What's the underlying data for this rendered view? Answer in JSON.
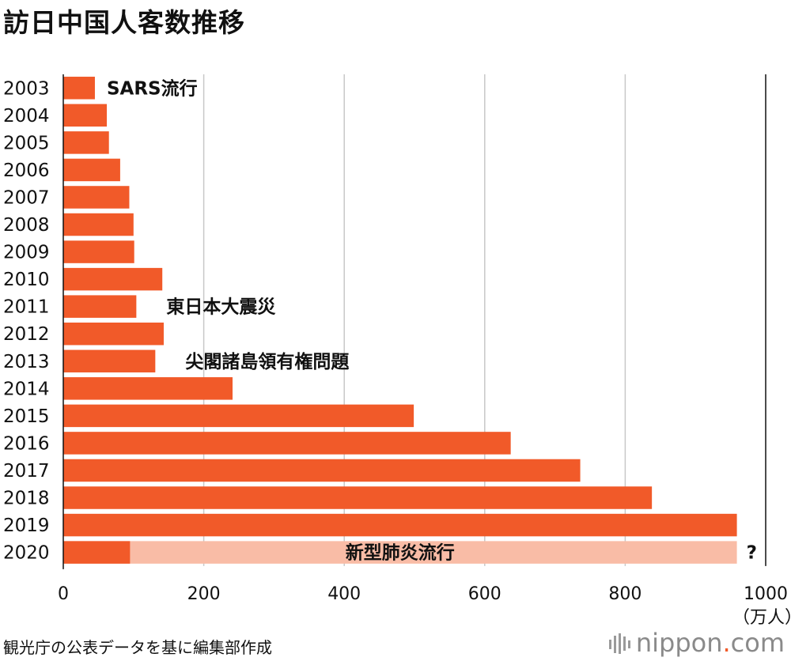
{
  "title": "訪日中国人客数推移",
  "source": "観光庁の公表データを基に編集部作成",
  "brand": {
    "name": "nippon",
    "dot": ".",
    "suffix": "com"
  },
  "colors": {
    "bar": "#f15a29",
    "bar_light": "#f9bca6",
    "grid": "#c8c8c8",
    "axis": "#111111"
  },
  "chart_data": {
    "type": "bar",
    "orientation": "horizontal",
    "title": "訪日中国人客数推移",
    "unit_label": "（万人）",
    "categories": [
      "2003",
      "2004",
      "2005",
      "2006",
      "2007",
      "2008",
      "2009",
      "2010",
      "2011",
      "2012",
      "2013",
      "2014",
      "2015",
      "2016",
      "2017",
      "2018",
      "2019",
      "2020"
    ],
    "values": [
      45,
      62,
      65,
      81,
      94,
      100,
      101,
      141,
      104,
      143,
      131,
      241,
      499,
      637,
      736,
      838,
      959,
      95
    ],
    "light_extent": {
      "category": "2020",
      "value": 959
    },
    "xlim": [
      0,
      1000
    ],
    "xticks": [
      0,
      200,
      400,
      600,
      800,
      1000
    ],
    "grid": true,
    "annotations": [
      {
        "category": "2003",
        "text": "SARS流行"
      },
      {
        "category": "2011",
        "text": "東日本大震災"
      },
      {
        "category": "2013",
        "text": "尖閣諸島領有権問題"
      },
      {
        "category": "2020",
        "text": "新型肺炎流行"
      },
      {
        "category": "2020",
        "text": "?"
      }
    ]
  }
}
